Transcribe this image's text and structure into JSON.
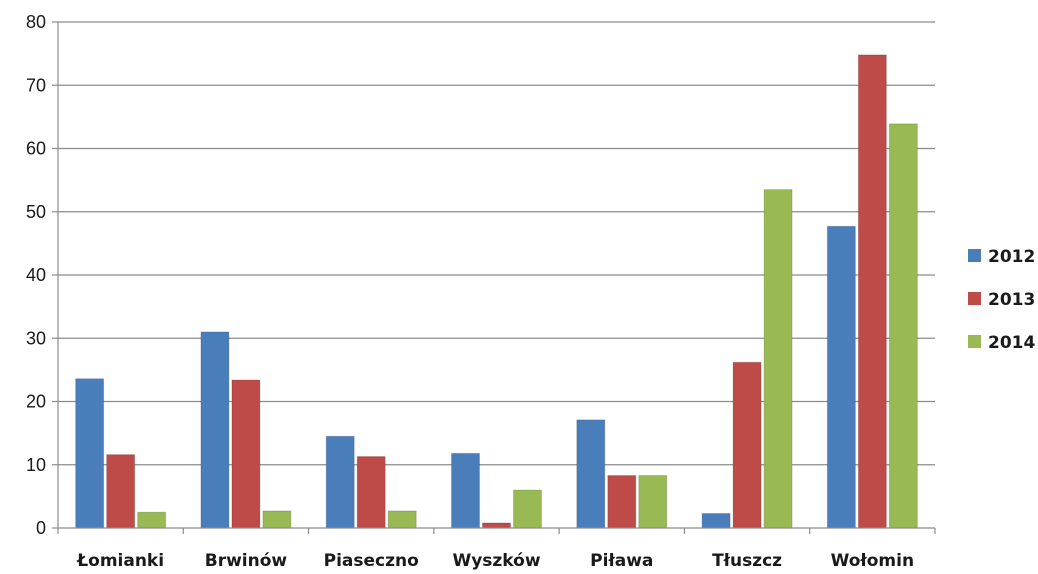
{
  "chart_data": {
    "type": "bar",
    "title": "",
    "xlabel": "",
    "ylabel": "",
    "categories": [
      "Łomianki",
      "Brwinów",
      "Piaseczno",
      "Wyszków",
      "Piława",
      "Tłuszcz",
      "Wołomin"
    ],
    "series": [
      {
        "name": "2012",
        "color": "#4a7ebb",
        "values": [
          23.6,
          31.0,
          14.5,
          11.8,
          17.1,
          2.3,
          47.7
        ]
      },
      {
        "name": "2013",
        "color": "#be4b48",
        "values": [
          11.6,
          23.4,
          11.3,
          0.8,
          8.3,
          26.2,
          74.8
        ]
      },
      {
        "name": "2014",
        "color": "#98b954",
        "values": [
          2.5,
          2.7,
          2.7,
          6.0,
          8.3,
          53.5,
          63.9
        ]
      }
    ],
    "ylim": [
      0,
      80
    ],
    "yticks": [
      0,
      10,
      20,
      30,
      40,
      50,
      60,
      70,
      80
    ],
    "grid": true,
    "legend_position": "right"
  }
}
